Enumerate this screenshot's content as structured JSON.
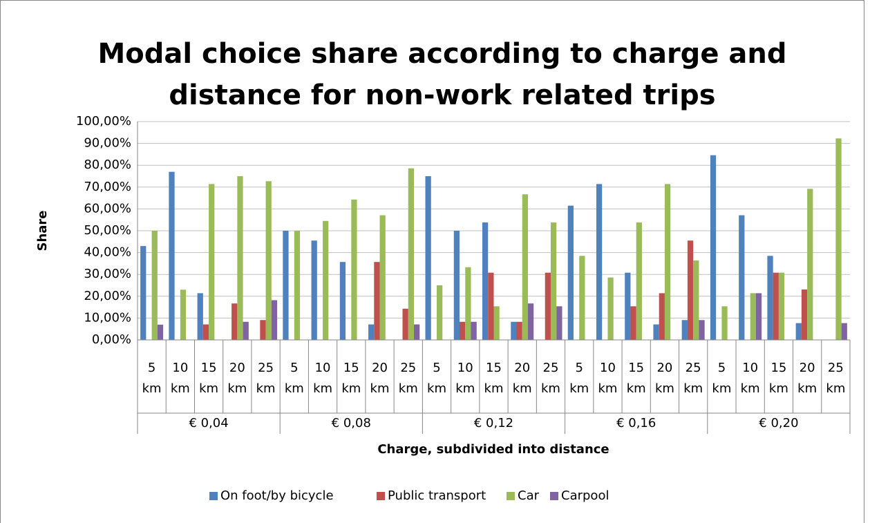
{
  "chart_data": {
    "type": "bar",
    "title": "Modal choice share according to charge and distance for non-work related trips",
    "x_label": "Charge, subdivided into distance",
    "y_label": "Share",
    "categories": [
      "5 km",
      "10 km",
      "15 km",
      "20 km",
      "25 km",
      "5 km",
      "10 km",
      "15 km",
      "20 km",
      "25 km",
      "5 km",
      "10 km",
      "15 km",
      "20 km",
      "25 km",
      "5 km",
      "10 km",
      "15 km",
      "20 km",
      "25 km",
      "5 km",
      "10 km",
      "15 km",
      "20 km",
      "25 km"
    ],
    "groups": [
      "€ 0,04",
      "€ 0,08",
      "€ 0,12",
      "€ 0,16",
      "€ 0,20"
    ],
    "series": [
      {
        "name": "On foot/by bicycle",
        "color": "#4f81bd",
        "values": [
          43,
          77,
          21.4,
          0,
          0,
          50,
          45.5,
          35.7,
          7.1,
          0,
          75,
          50,
          53.8,
          8.3,
          0,
          61.5,
          71.4,
          30.8,
          7.1,
          9.1,
          84.6,
          57.1,
          38.5,
          7.7,
          0
        ]
      },
      {
        "name": "Public transport",
        "color": "#c0504d",
        "values": [
          0,
          0,
          7.1,
          16.7,
          9.1,
          0,
          0,
          0,
          35.7,
          14.3,
          0,
          8.3,
          30.8,
          8.3,
          30.8,
          0,
          0,
          15.4,
          21.4,
          45.5,
          0,
          0,
          30.8,
          23.1,
          0
        ]
      },
      {
        "name": "Car",
        "color": "#9bbb59",
        "values": [
          50,
          23,
          71.4,
          75,
          72.7,
          50,
          54.5,
          64.3,
          57.1,
          78.6,
          25,
          33.3,
          15.4,
          66.7,
          53.8,
          38.5,
          28.6,
          53.8,
          71.4,
          36.4,
          15.4,
          21.4,
          30.8,
          69.2,
          92.3
        ]
      },
      {
        "name": "Carpool",
        "color": "#8064a2",
        "values": [
          7,
          0,
          0,
          8.3,
          18.2,
          0,
          0,
          0,
          0,
          7.1,
          0,
          8.3,
          0,
          16.7,
          15.4,
          0,
          0,
          0,
          0,
          9.1,
          0,
          21.4,
          0,
          0,
          7.7
        ]
      }
    ],
    "ylim": [
      0,
      100
    ],
    "yticks": [
      {
        "value": 0,
        "label": "0,00%"
      },
      {
        "value": 10,
        "label": "10,00%"
      },
      {
        "value": 20,
        "label": "20,00%"
      },
      {
        "value": 30,
        "label": "30,00%"
      },
      {
        "value": 40,
        "label": "40,00%"
      },
      {
        "value": 50,
        "label": "50,00%"
      },
      {
        "value": 60,
        "label": "60,00%"
      },
      {
        "value": 70,
        "label": "70,00%"
      },
      {
        "value": 80,
        "label": "80,00%"
      },
      {
        "value": 90,
        "label": "90,00%"
      },
      {
        "value": 100,
        "label": "100,00%"
      }
    ],
    "grid": true,
    "legend": "bottom"
  }
}
